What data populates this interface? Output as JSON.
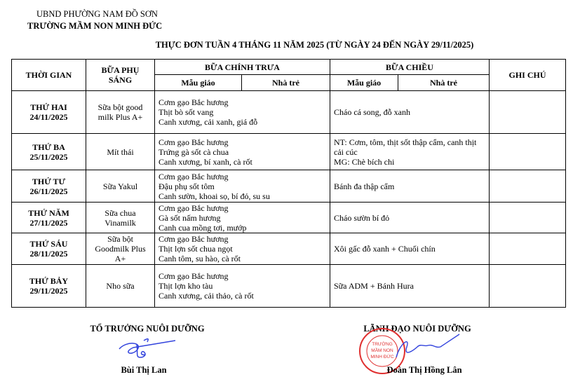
{
  "header": {
    "authority": "UBND PHƯỜNG NAM ĐỒ SƠN",
    "school": "TRƯỜNG MẦM NON MINH ĐỨC",
    "title": "THỰC ĐƠN TUẦN 4 THÁNG 11 NĂM 2025 (TỪ NGÀY 24 ĐẾN NGÀY 29/11/2025)"
  },
  "table": {
    "headers": {
      "time": "THỜI GIAN",
      "morning_snack": "BỮA PHỤ SÁNG",
      "lunch": "BỮA CHÍNH TRƯA",
      "afternoon": "BỮA CHIỀU",
      "note": "GHI CHÚ",
      "kindergarten": "Mẫu giáo",
      "nursery": "Nhà trẻ"
    },
    "rows": [
      {
        "day": "THỨ HAI",
        "date": "24/11/2025",
        "snack": "Sữa bột good milk Plus A+",
        "lunch": [
          "Cơm gạo Bắc hương",
          "Thịt bò sốt vang",
          "Canh xương, cải xanh, giá đỗ"
        ],
        "afternoon": [
          "Cháo cá song, đỗ xanh"
        ],
        "note": ""
      },
      {
        "day": "THỨ BA",
        "date": "25/11/2025",
        "snack": "Mít thái",
        "lunch": [
          "Cơm gạo Bắc hương",
          "Trứng gà sốt cà chua",
          "Canh xương, bí xanh, cà rốt"
        ],
        "afternoon": [
          "NT: Cơm, tôm, thịt sốt thập cẩm, canh thịt cải cúc",
          "MG: Chè bích chi"
        ],
        "note": ""
      },
      {
        "day": "THỨ TƯ",
        "date": "26/11/2025",
        "snack": "Sữa Yakul",
        "lunch": [
          "Cơm gạo Bắc hương",
          "Đậu phụ sốt tôm",
          "Canh sườn, khoai sọ, bí đỏ, su su"
        ],
        "afternoon": [
          "Bánh đa thập cẩm"
        ],
        "note": ""
      },
      {
        "day": "THỨ NĂM",
        "date": "27/11/2025",
        "snack": "Sữa chua Vinamilk",
        "lunch": [
          "Cơm gạo Bắc hương",
          "Gà sốt nấm hương",
          "Canh cua mồng tơi, mướp"
        ],
        "afternoon": [
          "Cháo sườn bí đỏ"
        ],
        "note": ""
      },
      {
        "day": "THỨ SÁU",
        "date": "28/11/2025",
        "snack": "Sữa bột Goodmilk Plus A+",
        "lunch": [
          "Cơm gạo Bắc hương",
          "Thịt lợn sốt chua ngọt",
          "Canh tôm, su hào, cà rốt"
        ],
        "afternoon": [
          "Xôi gấc đỗ xanh + Chuối chín"
        ],
        "note": ""
      },
      {
        "day": "THỨ BẢY",
        "date": "29/11/2025",
        "snack": "Nho sữa",
        "lunch": [
          "Cơm gạo Bắc hương",
          "Thịt lợn kho tàu",
          "Canh xương, cải thảo, cà rốt"
        ],
        "afternoon": [
          "Sữa ADM + Bánh Hura"
        ],
        "note": ""
      }
    ]
  },
  "signatures": {
    "left_title": "TỔ TRƯỞNG NUÔI DƯỠNG",
    "left_name": "Bùi Thị Lan",
    "right_title": "LÃNH ĐẠO NUÔI DƯỠNG",
    "right_name": "Đoàn Thị Hồng Lân",
    "stamp_text": "TRƯỜNG MẦM NON MINH ĐỨC",
    "ink_color": "#3344dd",
    "stamp_color": "#e03030"
  }
}
